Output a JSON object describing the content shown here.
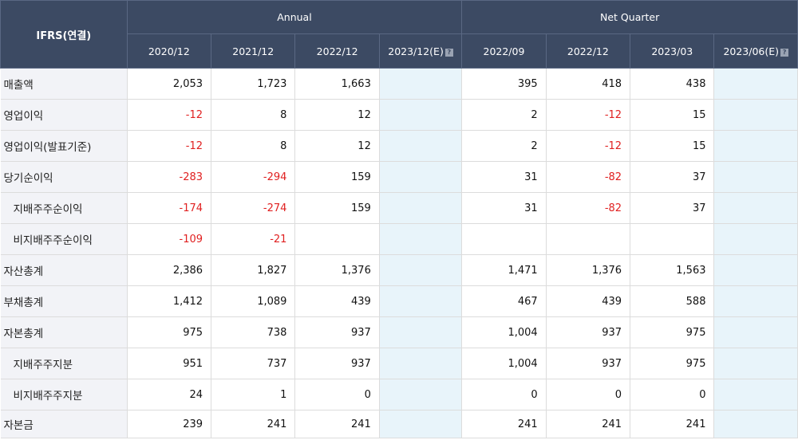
{
  "header": {
    "label": "IFRS(연결)",
    "annual_group": "Annual",
    "quarter_group": "Net Quarter",
    "annual_cols": [
      "2020/12",
      "2021/12",
      "2022/12",
      "2023/12(E)"
    ],
    "quarter_cols": [
      "2022/09",
      "2022/12",
      "2023/03",
      "2023/06(E)"
    ],
    "help_glyph": "?"
  },
  "rows": [
    {
      "label": "매출액",
      "sub": false,
      "annual": [
        "2,053",
        "1,723",
        "1,663",
        ""
      ],
      "quarter": [
        "395",
        "418",
        "438",
        ""
      ]
    },
    {
      "label": "영업이익",
      "sub": false,
      "annual": [
        "-12",
        "8",
        "12",
        ""
      ],
      "quarter": [
        "2",
        "-12",
        "15",
        ""
      ]
    },
    {
      "label": "영업이익(발표기준)",
      "sub": false,
      "annual": [
        "-12",
        "8",
        "12",
        ""
      ],
      "quarter": [
        "2",
        "-12",
        "15",
        ""
      ]
    },
    {
      "label": "당기순이익",
      "sub": false,
      "annual": [
        "-283",
        "-294",
        "159",
        ""
      ],
      "quarter": [
        "31",
        "-82",
        "37",
        ""
      ]
    },
    {
      "label": "지배주주순이익",
      "sub": true,
      "annual": [
        "-174",
        "-274",
        "159",
        ""
      ],
      "quarter": [
        "31",
        "-82",
        "37",
        ""
      ]
    },
    {
      "label": "비지배주주순이익",
      "sub": true,
      "annual": [
        "-109",
        "-21",
        "",
        ""
      ],
      "quarter": [
        "",
        "",
        "",
        ""
      ]
    },
    {
      "label": "자산총계",
      "sub": false,
      "annual": [
        "2,386",
        "1,827",
        "1,376",
        ""
      ],
      "quarter": [
        "1,471",
        "1,376",
        "1,563",
        ""
      ]
    },
    {
      "label": "부채총계",
      "sub": false,
      "annual": [
        "1,412",
        "1,089",
        "439",
        ""
      ],
      "quarter": [
        "467",
        "439",
        "588",
        ""
      ]
    },
    {
      "label": "자본총계",
      "sub": false,
      "annual": [
        "975",
        "738",
        "937",
        ""
      ],
      "quarter": [
        "1,004",
        "937",
        "975",
        ""
      ]
    },
    {
      "label": "지배주주지분",
      "sub": true,
      "annual": [
        "951",
        "737",
        "937",
        ""
      ],
      "quarter": [
        "1,004",
        "937",
        "975",
        ""
      ]
    },
    {
      "label": "비지배주주지분",
      "sub": true,
      "annual": [
        "24",
        "1",
        "0",
        ""
      ],
      "quarter": [
        "0",
        "0",
        "0",
        ""
      ]
    },
    {
      "label": "자본금",
      "sub": false,
      "annual": [
        "239",
        "241",
        "241",
        ""
      ],
      "quarter": [
        "241",
        "241",
        "241",
        ""
      ]
    }
  ],
  "colors": {
    "header_bg": "#3c4a63",
    "label_bg": "#f2f3f7",
    "estimate_bg": "#e8f4fa",
    "negative": "#e02020"
  }
}
